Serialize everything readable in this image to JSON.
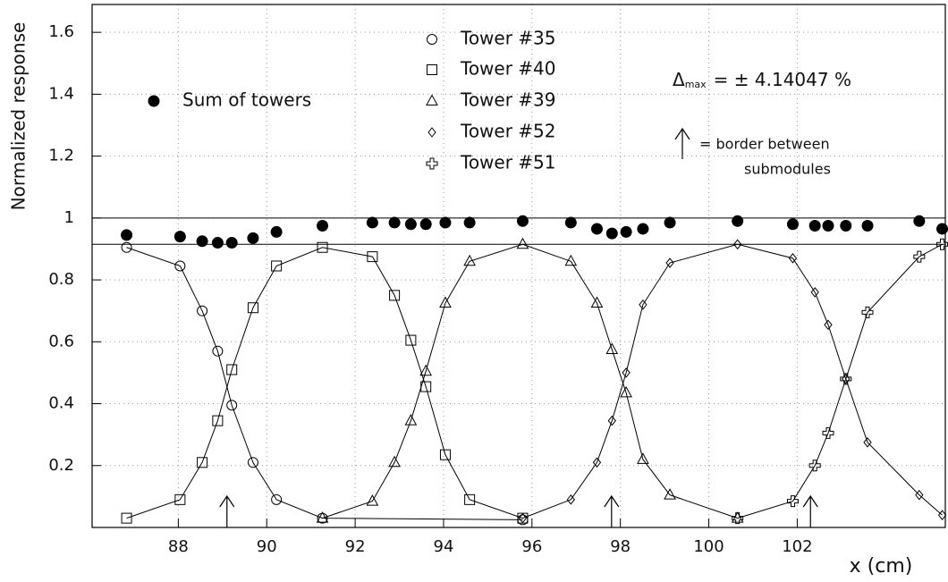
{
  "chart_data": {
    "type": "scatter",
    "x_label": "x (cm)",
    "y_label": "Normalized response",
    "xlim": [
      86.05,
      105.35
    ],
    "ylim": [
      0,
      1.69
    ],
    "xticks": [
      88,
      90,
      92,
      94,
      96,
      98,
      100,
      102
    ],
    "yticks": [
      0.2,
      0.4,
      0.6,
      0.8,
      1,
      1.2,
      1.4,
      1.6
    ],
    "grid": true,
    "reference_lines": [
      1,
      0.915
    ],
    "border_arrows": [
      89.1,
      97.8,
      102.3
    ],
    "delta_max_label": {
      "symbol": "Δ",
      "subscript": "max",
      "text": "= ± 4.14047 %"
    },
    "arrow_note": [
      "= border between",
      "submodules"
    ],
    "series": [
      {
        "name": "Tower #35",
        "marker": "circle",
        "color": "#000000",
        "line": true,
        "x": [
          86.83,
          88.04,
          88.54,
          88.89,
          89.21,
          89.69,
          90.22,
          91.26,
          95.79
        ],
        "values": [
          0.905,
          0.845,
          0.7,
          0.57,
          0.395,
          0.21,
          0.09,
          0.03,
          0.025
        ]
      },
      {
        "name": "Tower #40",
        "marker": "square",
        "color": "#000000",
        "line": true,
        "x": [
          86.83,
          88.04,
          88.54,
          88.89,
          89.21,
          89.69,
          90.22,
          91.26,
          92.39,
          92.89,
          93.26,
          93.6,
          94.04,
          94.59,
          95.79
        ],
        "values": [
          0.03,
          0.09,
          0.21,
          0.345,
          0.51,
          0.71,
          0.845,
          0.905,
          0.875,
          0.75,
          0.605,
          0.455,
          0.235,
          0.09,
          0.03
        ]
      },
      {
        "name": "Tower #39",
        "marker": "triangle",
        "color": "#000000",
        "line": true,
        "x": [
          91.26,
          92.39,
          92.89,
          93.26,
          93.6,
          94.04,
          94.59,
          95.79,
          96.88,
          97.47,
          97.81,
          98.13,
          98.51,
          99.12,
          100.65
        ],
        "values": [
          0.03,
          0.085,
          0.21,
          0.345,
          0.505,
          0.725,
          0.86,
          0.915,
          0.86,
          0.725,
          0.575,
          0.435,
          0.22,
          0.105,
          0.03
        ]
      },
      {
        "name": "Tower #52",
        "marker": "diamond",
        "color": "#000000",
        "line": true,
        "x": [
          95.79,
          96.88,
          97.47,
          97.81,
          98.13,
          98.51,
          99.12,
          100.65,
          101.9,
          102.4,
          102.7,
          103.1,
          103.59,
          104.76,
          105.28
        ],
        "values": [
          0.03,
          0.09,
          0.21,
          0.345,
          0.5,
          0.72,
          0.855,
          0.915,
          0.87,
          0.76,
          0.655,
          0.48,
          0.275,
          0.105,
          0.04
        ]
      },
      {
        "name": "Tower #51",
        "marker": "cross",
        "color": "#000000",
        "line": true,
        "x": [
          100.65,
          101.9,
          102.4,
          102.7,
          103.1,
          103.59,
          104.76,
          105.28
        ],
        "values": [
          0.03,
          0.085,
          0.2,
          0.305,
          0.48,
          0.695,
          0.875,
          0.915
        ]
      },
      {
        "name": "Sum of towers",
        "marker": "dot",
        "color": "#000000",
        "line": false,
        "x": [
          86.83,
          88.04,
          88.54,
          88.89,
          89.21,
          89.69,
          90.22,
          91.26,
          92.39,
          92.89,
          93.26,
          93.6,
          94.04,
          94.59,
          95.79,
          96.88,
          97.47,
          97.81,
          98.13,
          98.51,
          99.12,
          100.65,
          101.9,
          102.4,
          102.7,
          103.1,
          103.59,
          104.76,
          105.28
        ],
        "values": [
          0.945,
          0.94,
          0.925,
          0.92,
          0.92,
          0.935,
          0.955,
          0.975,
          0.985,
          0.985,
          0.98,
          0.98,
          0.985,
          0.985,
          0.99,
          0.985,
          0.965,
          0.95,
          0.955,
          0.965,
          0.985,
          0.99,
          0.98,
          0.975,
          0.975,
          0.975,
          0.975,
          0.99,
          0.965
        ]
      }
    ]
  }
}
